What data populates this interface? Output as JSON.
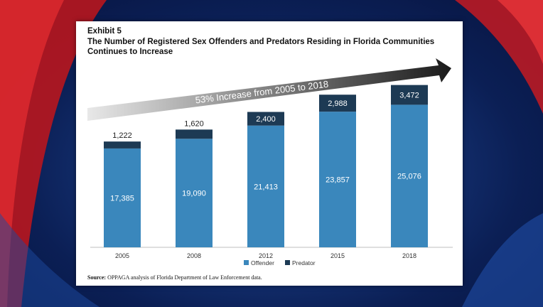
{
  "exhibit_label": "Exhibit 5",
  "title": "The Number of Registered Sex Offenders and Predators Residing in Florida Communities Continues to Increase",
  "arrow_label": "53% Increase from 2005 to 2018",
  "source": {
    "label": "Source:",
    "text": "OPPAGA analysis of Florida Department of Law Enforcement data."
  },
  "colors": {
    "offender": "#3a87bc",
    "predator": "#1d3a54",
    "background": "#122f6e",
    "swoosh_red": "#d0202a"
  },
  "chart_data": {
    "type": "bar",
    "stacked": true,
    "categories": [
      "2005",
      "2008",
      "2012",
      "2015",
      "2018"
    ],
    "series": [
      {
        "name": "Offender",
        "values": [
          17385,
          19090,
          21413,
          23857,
          25076
        ],
        "color": "#3a87bc"
      },
      {
        "name": "Predator",
        "values": [
          1222,
          1620,
          2400,
          2988,
          3472
        ],
        "color": "#1d3a54"
      }
    ],
    "value_labels": {
      "Offender": [
        "17,385",
        "19,090",
        "21,413",
        "23,857",
        "25,076"
      ],
      "Predator": [
        "1,222",
        "1,620",
        "2,400",
        "2,988",
        "3,472"
      ]
    },
    "ylim": [
      0,
      30000
    ],
    "grid": false,
    "legend_position": "bottom"
  }
}
